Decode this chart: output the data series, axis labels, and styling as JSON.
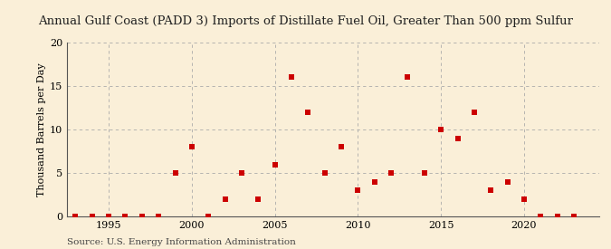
{
  "title": "Annual Gulf Coast (PADD 3) Imports of Distillate Fuel Oil, Greater Than 500 ppm Sulfur",
  "ylabel": "Thousand Barrels per Day",
  "source": "Source: U.S. Energy Information Administration",
  "background_color": "#faefd8",
  "marker_color": "#cc0000",
  "years": [
    1993,
    1994,
    1995,
    1996,
    1997,
    1998,
    1999,
    2000,
    2001,
    2002,
    2003,
    2004,
    2005,
    2006,
    2007,
    2008,
    2009,
    2010,
    2011,
    2012,
    2013,
    2014,
    2015,
    2016,
    2017,
    2018,
    2019,
    2020,
    2021,
    2022,
    2023
  ],
  "values": [
    0,
    0,
    0,
    0,
    0,
    0,
    5,
    8,
    0,
    2,
    5,
    2,
    6,
    16,
    12,
    5,
    8,
    3,
    4,
    5,
    16,
    5,
    10,
    9,
    12,
    3,
    4,
    2,
    0,
    0,
    0
  ],
  "xlim": [
    1992.5,
    2024.5
  ],
  "ylim": [
    0,
    20
  ],
  "yticks": [
    0,
    5,
    10,
    15,
    20
  ],
  "xticks": [
    1995,
    2000,
    2005,
    2010,
    2015,
    2020
  ],
  "grid_color": "#aaaaaa",
  "title_fontsize": 9.5,
  "label_fontsize": 8,
  "tick_fontsize": 8,
  "source_fontsize": 7.5
}
